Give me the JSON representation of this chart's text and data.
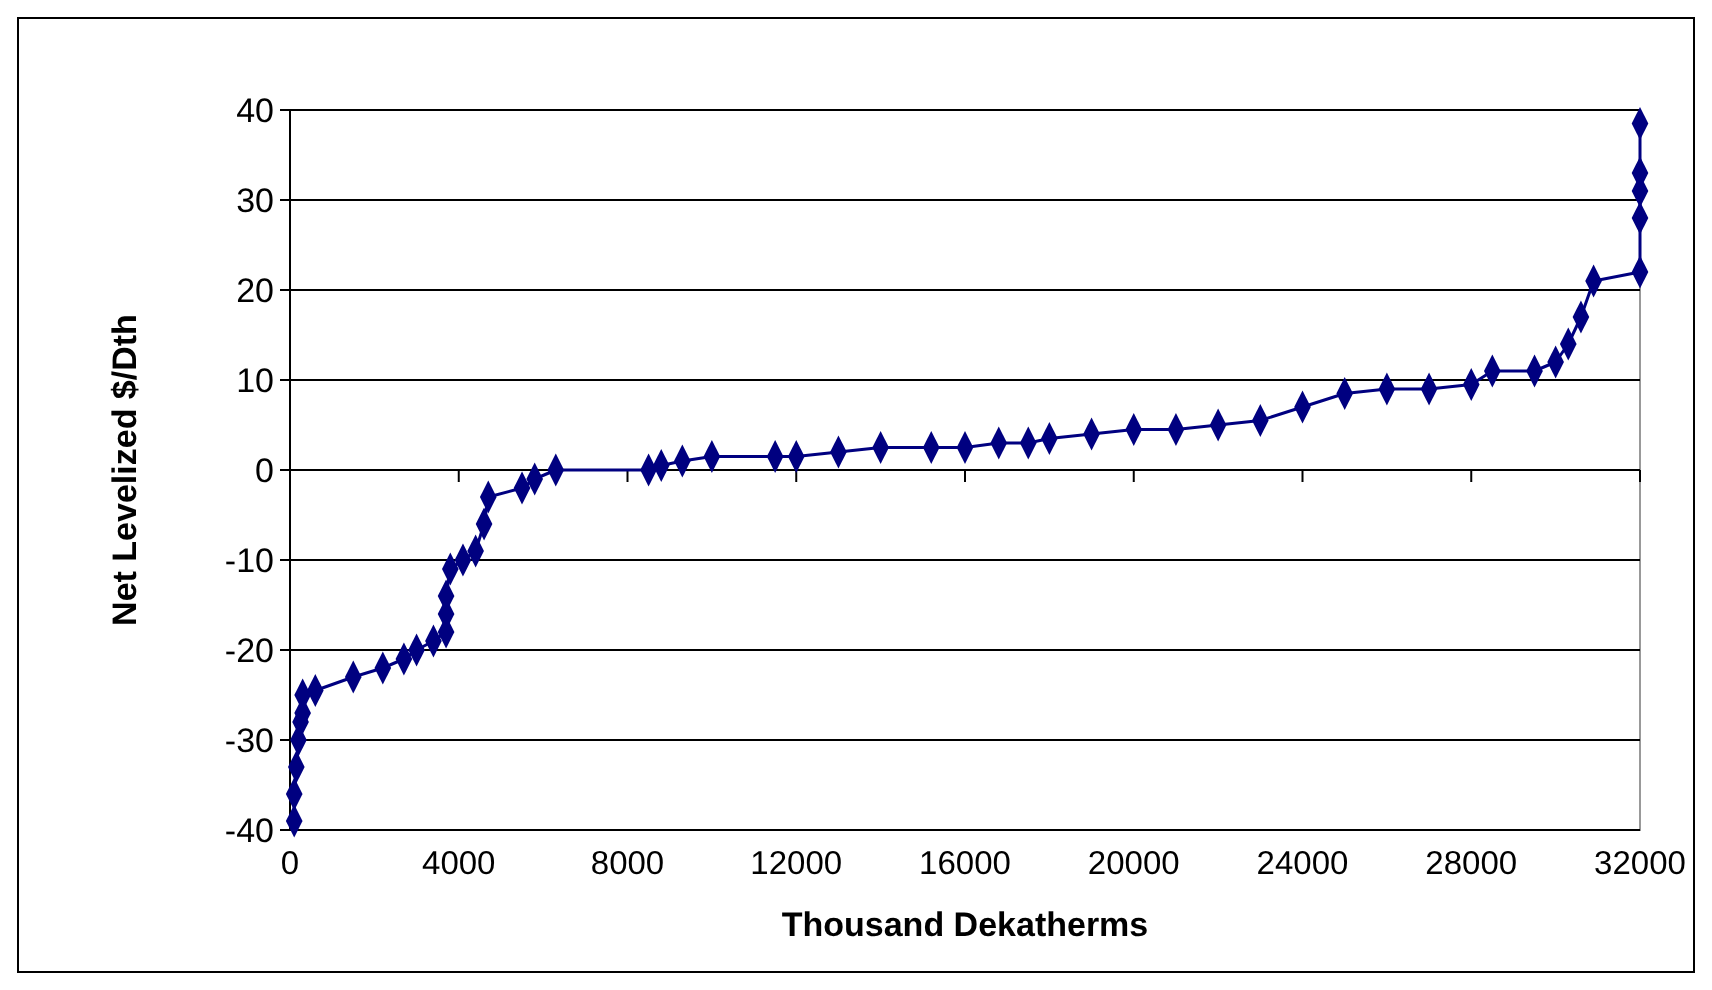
{
  "chart_data": {
    "type": "line",
    "xlabel": "Thousand Dekatherms",
    "ylabel": "Net Levelized $/Dth",
    "xlim": [
      0,
      32000
    ],
    "xticks": [
      0,
      4000,
      8000,
      12000,
      16000,
      20000,
      24000,
      28000,
      32000
    ],
    "ylim": [
      -40,
      40
    ],
    "yticks": [
      -40,
      -30,
      -20,
      -10,
      0,
      10,
      20,
      30,
      40
    ],
    "grid": "y",
    "marker": "diamond",
    "line_style": "solid",
    "series": [
      {
        "color": "#000080",
        "x": [
          100,
          100,
          150,
          200,
          250,
          300,
          300,
          600,
          1500,
          2200,
          2700,
          3000,
          3400,
          3700,
          3700,
          3700,
          3800,
          4100,
          4400,
          4600,
          4700,
          5500,
          5800,
          6300,
          8500,
          8800,
          9300,
          10000,
          11500,
          12000,
          13000,
          14000,
          15200,
          16000,
          16800,
          17500,
          18000,
          19000,
          20000,
          21000,
          22000,
          23000,
          24000,
          25000,
          26000,
          27000,
          28000,
          28500,
          29500,
          30000,
          30300,
          30600,
          30900,
          32000,
          32000,
          32000,
          32000,
          32000
        ],
        "values": [
          -39,
          -36,
          -33,
          -30,
          -28,
          -27,
          -25,
          -24.5,
          -23,
          -22,
          -21,
          -20,
          -19,
          -18,
          -16,
          -14,
          -11,
          -10,
          -9,
          -6,
          -3,
          -2,
          -1,
          0,
          0,
          0.5,
          1,
          1.5,
          1.5,
          1.5,
          2,
          2.5,
          2.5,
          2.5,
          3,
          3,
          3.5,
          4,
          4.5,
          4.5,
          5,
          5.5,
          7,
          8.5,
          9,
          9,
          9.5,
          11,
          11,
          12,
          14,
          17,
          21,
          22,
          28,
          31,
          33,
          38.5
        ]
      }
    ]
  }
}
